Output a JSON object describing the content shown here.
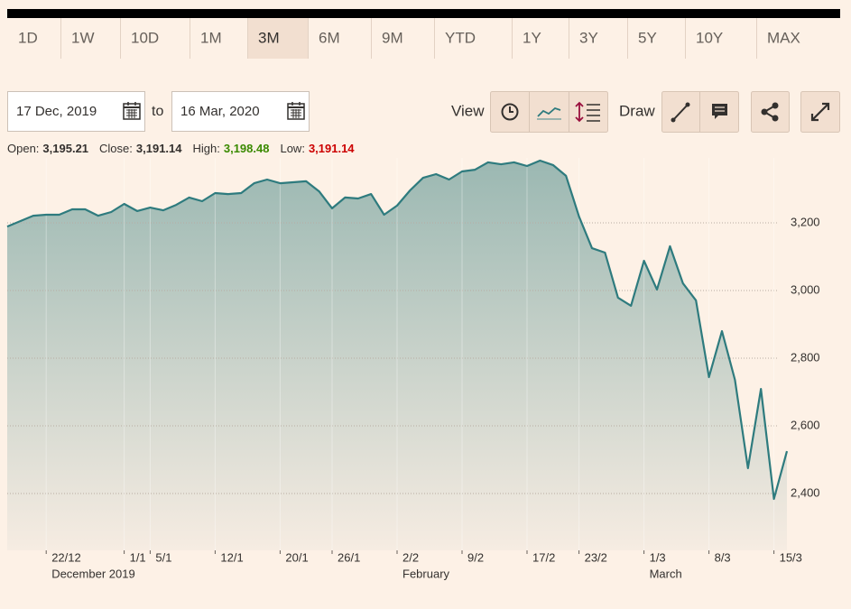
{
  "range_buttons": [
    "1D",
    "1W",
    "10D",
    "1M",
    "3M",
    "6M",
    "9M",
    "YTD",
    "1Y",
    "3Y",
    "5Y",
    "10Y",
    "MAX"
  ],
  "selected_range": "3M",
  "date_from": "17 Dec, 2019",
  "to_label": "to",
  "date_to": "16 Mar, 2020",
  "view_label": "View",
  "draw_label": "Draw",
  "stats": [
    {
      "label": "Open:",
      "value": "3,195.21"
    },
    {
      "label": "Close:",
      "value": "3,191.14"
    },
    {
      "label": "High:",
      "value": "3,198.48",
      "color": "#3a8a00"
    },
    {
      "label": "Low:",
      "value": "3,191.14",
      "color": "#cc0000"
    }
  ],
  "chart_data": {
    "type": "area",
    "values": [
      3189,
      3205,
      3221,
      3224,
      3224,
      3240,
      3240,
      3221,
      3232,
      3256,
      3235,
      3245,
      3237,
      3253,
      3275,
      3264,
      3288,
      3285,
      3288,
      3317,
      3328,
      3317,
      3320,
      3323,
      3293,
      3243,
      3275,
      3272,
      3285,
      3224,
      3251,
      3296,
      3333,
      3344,
      3328,
      3352,
      3357,
      3379,
      3373,
      3379,
      3368,
      3384,
      3371,
      3339,
      3219,
      3125,
      3112,
      2979,
      2955,
      3088,
      3003,
      3131,
      3021,
      2971,
      2744,
      2880,
      2736,
      2475,
      2709,
      2384,
      2525
    ],
    "color": "#2e7b7e",
    "xlim": [
      0,
      60
    ],
    "ylim": [
      2232,
      3392
    ],
    "yticks": [
      {
        "value": 2400,
        "label": "2,400"
      },
      {
        "value": 2600,
        "label": "2,600"
      },
      {
        "value": 2800,
        "label": "2,800"
      },
      {
        "value": 3000,
        "label": "3,000"
      },
      {
        "value": 3200,
        "label": "3,200"
      }
    ],
    "xticks": [
      {
        "value": 3,
        "label": "22/12"
      },
      {
        "value": 9,
        "label": "1/1"
      },
      {
        "value": 11,
        "label": "5/1"
      },
      {
        "value": 16,
        "label": "12/1"
      },
      {
        "value": 21,
        "label": "20/1"
      },
      {
        "value": 25,
        "label": "26/1"
      },
      {
        "value": 30,
        "label": "2/2"
      },
      {
        "value": 35,
        "label": "9/2"
      },
      {
        "value": 40,
        "label": "17/2"
      },
      {
        "value": 44,
        "label": "23/2"
      },
      {
        "value": 49,
        "label": "1/3"
      },
      {
        "value": 54,
        "label": "8/3"
      },
      {
        "value": 59,
        "label": "15/3"
      }
    ],
    "month_labels": [
      {
        "value": 3,
        "label": "December 2019"
      },
      {
        "value": 30,
        "label": "February"
      },
      {
        "value": 49,
        "label": "March"
      }
    ],
    "grid": true
  }
}
